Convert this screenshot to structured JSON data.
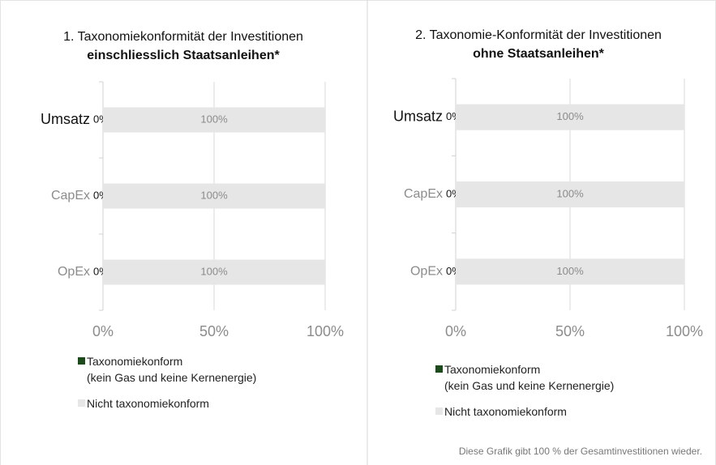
{
  "chart_data": [
    {
      "type": "bar",
      "orientation": "horizontal",
      "stacked": true,
      "title": "1. Taxonomiekonformität der Investitionen",
      "subtitle": "einschliesslich Staatsanleihen*",
      "categories": [
        "Umsatz",
        "CapEx",
        "OpEx"
      ],
      "series": [
        {
          "name": "Taxonomiekonform\n(kein Gas und keine Kernenergie)",
          "color": "#1b4a1b",
          "values": [
            0,
            0,
            0
          ],
          "value_labels": [
            "0%",
            "0%",
            "0%"
          ]
        },
        {
          "name": "Nicht taxonomiekonform",
          "color": "#e6e6e6",
          "values": [
            100,
            100,
            100
          ],
          "value_labels": [
            "100%",
            "100%",
            "100%"
          ]
        }
      ],
      "xlim": [
        0,
        100
      ],
      "xticks": [
        {
          "value": 0,
          "label": "0%"
        },
        {
          "value": 50,
          "label": "50%"
        },
        {
          "value": 100,
          "label": "100%"
        }
      ],
      "grid": true
    },
    {
      "type": "bar",
      "orientation": "horizontal",
      "stacked": true,
      "title": "2. Taxonomie-Konformität der Investitionen",
      "subtitle": "ohne Staatsanleihen*",
      "categories": [
        "Umsatz",
        "CapEx",
        "OpEx"
      ],
      "series": [
        {
          "name": "Taxonomiekonform\n(kein Gas und keine Kernenergie)",
          "color": "#1b4a1b",
          "values": [
            0,
            0,
            0
          ],
          "value_labels": [
            "0%",
            "0%",
            "0%"
          ]
        },
        {
          "name": "Nicht taxonomiekonform",
          "color": "#e6e6e6",
          "values": [
            100,
            100,
            100
          ],
          "value_labels": [
            "100%",
            "100%",
            "100%"
          ]
        }
      ],
      "xlim": [
        0,
        100
      ],
      "xticks": [
        {
          "value": 0,
          "label": "0%"
        },
        {
          "value": 50,
          "label": "50%"
        },
        {
          "value": 100,
          "label": "100%"
        }
      ],
      "grid": true,
      "note": "Diese Grafik gibt 100 % der Gesamtinvestitionen wieder."
    }
  ]
}
